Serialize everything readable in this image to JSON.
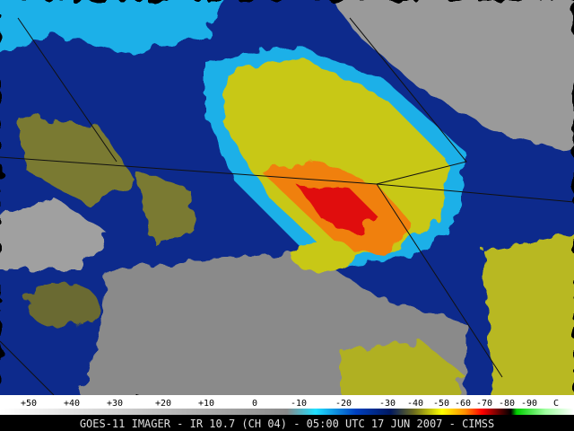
{
  "colorbar": {
    "labels": [
      "+50",
      "+40",
      "+30",
      "+20",
      "+10",
      "0",
      "-10",
      "-20",
      "-30",
      "-40",
      "-50",
      "-60",
      "-70",
      "-80",
      "-90",
      "C"
    ]
  },
  "caption": "GOES-11 IMAGER - IR 10.7 (CH 04) - 05:00 UTC 17 JUN 2007 - CIMSS"
}
